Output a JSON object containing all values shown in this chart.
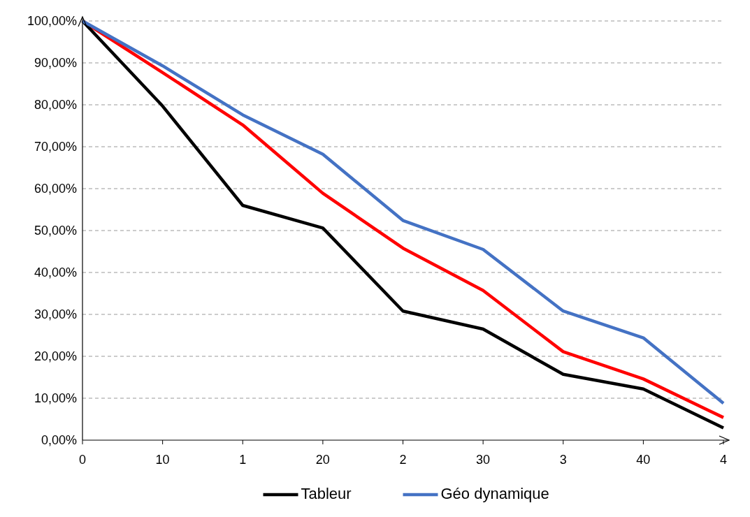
{
  "chart_data": {
    "type": "line",
    "categories": [
      "0",
      "10",
      "1",
      "20",
      "2",
      "30",
      "3",
      "40",
      "4"
    ],
    "series": [
      {
        "color": "#ff0000",
        "values": [
          100,
          87.7,
          75.2,
          58.9,
          45.8,
          35.7,
          21.1,
          14.6,
          5.4
        ]
      },
      {
        "name": "Tableur",
        "color": "#000000",
        "values": [
          100,
          79.7,
          56.0,
          50.6,
          30.8,
          26.5,
          15.7,
          12.2,
          2.9
        ]
      },
      {
        "name": "Géo dynamique",
        "color": "#4472c4",
        "values": [
          100,
          89.3,
          77.6,
          68.2,
          52.4,
          45.5,
          30.8,
          24.4,
          8.8
        ]
      }
    ],
    "ylim": [
      0,
      100
    ],
    "yticks": [
      {
        "value": 0,
        "label": "0,00%"
      },
      {
        "value": 10,
        "label": "10,00%"
      },
      {
        "value": 20,
        "label": "20,00%"
      },
      {
        "value": 30,
        "label": "30,00%"
      },
      {
        "value": 40,
        "label": "40,00%"
      },
      {
        "value": 50,
        "label": "50,00%"
      },
      {
        "value": 60,
        "label": "60,00%"
      },
      {
        "value": 70,
        "label": "70,00%"
      },
      {
        "value": 80,
        "label": "80,00%"
      },
      {
        "value": 90,
        "label": "90,00%"
      },
      {
        "value": 100,
        "label": "100,00%"
      }
    ],
    "grid": "y",
    "legend": "bottom",
    "line_style": "solid",
    "marker": "none"
  }
}
